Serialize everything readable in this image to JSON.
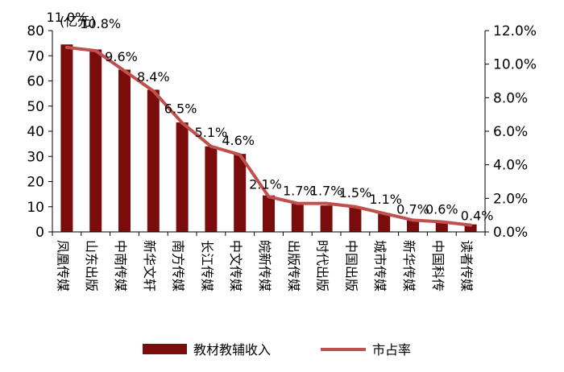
{
  "chart_data": {
    "type": "bar",
    "unit_label": "(亿元)",
    "categories": [
      "凤凰传媒",
      "山东出版",
      "中南传媒",
      "新华文轩",
      "南方传媒",
      "长江传媒",
      "中文传媒",
      "皖新传媒",
      "出版传媒",
      "时代出版",
      "中国出版",
      "城市传媒",
      "新华传媒",
      "中国科传",
      "读者传媒"
    ],
    "series": [
      {
        "name": "教材教辅收入",
        "type": "bar",
        "axis": "left",
        "color": "#7a0c0c",
        "values": [
          74.5,
          72.5,
          64.5,
          56.5,
          43.5,
          34.0,
          31.0,
          14.5,
          11.5,
          10.5,
          10.0,
          7.5,
          5.0,
          4.0,
          3.0
        ]
      },
      {
        "name": "市占率",
        "type": "line",
        "axis": "right",
        "color": "#c0504d",
        "values": [
          11.0,
          10.8,
          9.6,
          8.4,
          6.5,
          5.1,
          4.6,
          2.1,
          1.7,
          1.7,
          1.5,
          1.1,
          0.7,
          0.6,
          0.4
        ],
        "labels": [
          "11.0%",
          "10.8%",
          "9.6%",
          "8.4%",
          "6.5%",
          "5.1%",
          "4.6%",
          "2.1%",
          "1.7%",
          "1.7%",
          "1.5%",
          "1.1%",
          "0.7%",
          "0.6%",
          "0.4%"
        ]
      }
    ],
    "y_left": {
      "min": 0,
      "max": 80,
      "ticks": [
        0,
        10,
        20,
        30,
        40,
        50,
        60,
        70,
        80
      ],
      "tick_labels": [
        "0",
        "10",
        "20",
        "30",
        "40",
        "50",
        "60",
        "70",
        "80"
      ]
    },
    "y_right": {
      "min": 0,
      "max": 12,
      "ticks": [
        0,
        2,
        4,
        6,
        8,
        10,
        12
      ],
      "tick_labels": [
        "0.0%",
        "2.0%",
        "4.0%",
        "6.0%",
        "8.0%",
        "10.0%",
        "12.0%"
      ]
    },
    "grid": false,
    "legend": {
      "placement": "bottom"
    }
  }
}
